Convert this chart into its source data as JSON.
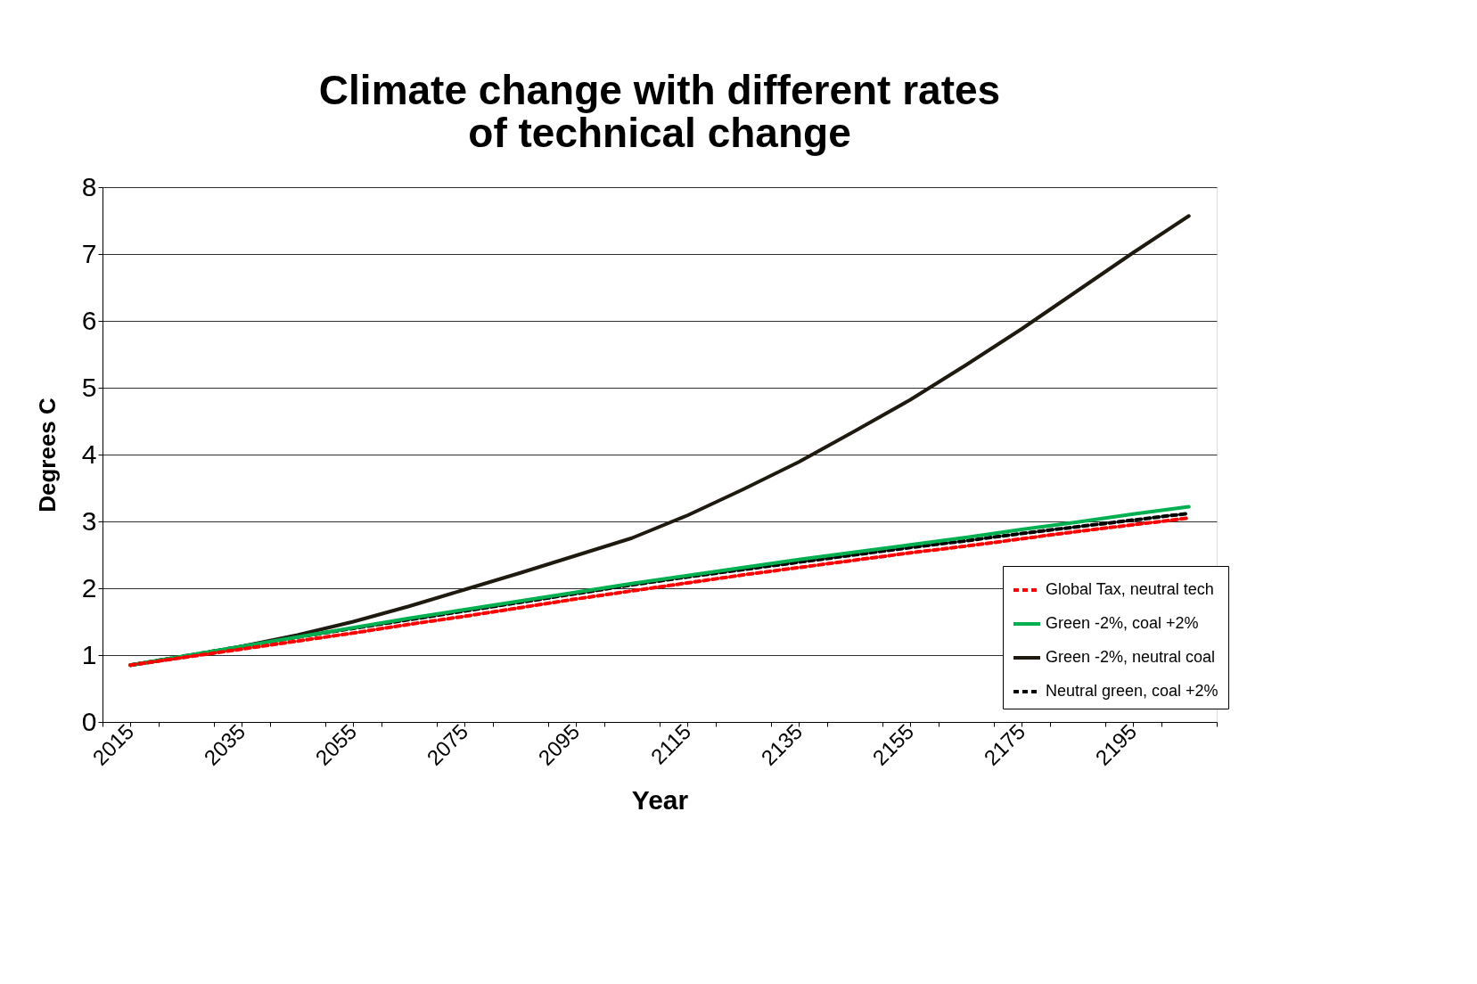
{
  "chart_data": {
    "type": "line",
    "title": "Climate change with different rates\nof technical change",
    "xlabel": "Year",
    "ylabel": "Degrees C",
    "x": [
      2015,
      2025,
      2035,
      2045,
      2055,
      2065,
      2075,
      2085,
      2095,
      2105,
      2115,
      2125,
      2135,
      2145,
      2155,
      2165,
      2175,
      2185,
      2195,
      2205
    ],
    "series": [
      {
        "name": "Global  Tax, neutral tech",
        "color": "#ff0000",
        "line_style": "dashed",
        "values": [
          0.85,
          0.97,
          1.09,
          1.21,
          1.33,
          1.46,
          1.58,
          1.71,
          1.84,
          1.96,
          2.08,
          2.2,
          2.31,
          2.42,
          2.53,
          2.63,
          2.74,
          2.85,
          2.95,
          3.05
        ]
      },
      {
        "name": "Green -2%, coal +2%",
        "color": "#00b050",
        "line_style": "solid",
        "values": [
          0.85,
          0.99,
          1.13,
          1.27,
          1.41,
          1.55,
          1.68,
          1.81,
          1.94,
          2.07,
          2.19,
          2.31,
          2.43,
          2.54,
          2.65,
          2.76,
          2.88,
          2.99,
          3.11,
          3.22
        ]
      },
      {
        "name": "Green -2%, neutral coal",
        "color": "#1f1a10",
        "line_style": "solid",
        "values": [
          0.85,
          0.98,
          1.13,
          1.3,
          1.5,
          1.73,
          1.98,
          2.23,
          2.49,
          2.75,
          3.09,
          3.48,
          3.89,
          4.35,
          4.82,
          5.34,
          5.88,
          6.45,
          7.02,
          7.57
        ]
      },
      {
        "name": "Neutral green, coal +2%",
        "color": "#000000",
        "line_style": "dashed",
        "values": [
          0.85,
          0.99,
          1.13,
          1.27,
          1.4,
          1.53,
          1.66,
          1.79,
          1.92,
          2.05,
          2.17,
          2.28,
          2.39,
          2.5,
          2.61,
          2.71,
          2.82,
          2.92,
          3.02,
          3.12
        ]
      }
    ],
    "xlim": [
      2010,
      2210
    ],
    "xticks": [
      {
        "value": 2010,
        "label": null
      },
      2015,
      {
        "value": 2020,
        "label": null
      },
      {
        "value": 2030,
        "label": null
      },
      2035,
      {
        "value": 2040,
        "label": null
      },
      {
        "value": 2050,
        "label": null
      },
      2055,
      {
        "value": 2060,
        "label": null
      },
      {
        "value": 2070,
        "label": null
      },
      2075,
      {
        "value": 2080,
        "label": null
      },
      {
        "value": 2090,
        "label": null
      },
      2095,
      {
        "value": 2100,
        "label": null
      },
      {
        "value": 2110,
        "label": null
      },
      2115,
      {
        "value": 2120,
        "label": null
      },
      {
        "value": 2130,
        "label": null
      },
      2135,
      {
        "value": 2140,
        "label": null
      },
      {
        "value": 2150,
        "label": null
      },
      2155,
      {
        "value": 2160,
        "label": null
      },
      {
        "value": 2170,
        "label": null
      },
      2175,
      {
        "value": 2180,
        "label": null
      },
      {
        "value": 2190,
        "label": null
      },
      2195,
      {
        "value": 2200,
        "label": null
      },
      {
        "value": 2210,
        "label": null
      }
    ],
    "ylim": [
      0,
      8
    ],
    "yticks": [
      0,
      1,
      2,
      3,
      4,
      5,
      6,
      7,
      8
    ],
    "grid": "y",
    "legend": "bottom right",
    "marker": "none"
  }
}
